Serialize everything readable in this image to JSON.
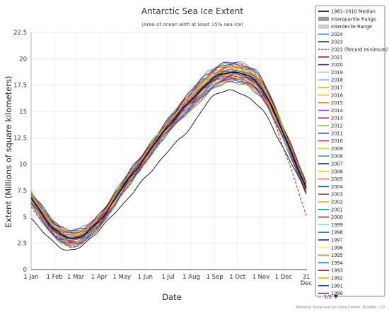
{
  "chart_data": {
    "type": "line",
    "title": "Antarctic Sea Ice Extent",
    "subtitle": "(Area of ocean with at least 15% sea ice)",
    "xlabel": "Date",
    "ylabel": "Extent (Millions of square kilometers)",
    "x_ticks": [
      "1 Jan",
      "1 Feb",
      "1 Mar",
      "1 Apr",
      "1 May",
      "1 Jun",
      "1 Jul",
      "1 Aug",
      "1 Sep",
      "1 Oct",
      "1 Nov",
      "1 Dec",
      "31 Dec"
    ],
    "x_tick_days": [
      1,
      32,
      60,
      91,
      121,
      152,
      182,
      213,
      244,
      274,
      305,
      335,
      365
    ],
    "y_ticks": [
      "0",
      "2.5",
      "5",
      "7.5",
      "10",
      "12.5",
      "15",
      "17.5",
      "20",
      "22.5"
    ],
    "ylim": [
      0,
      22.5
    ],
    "xlim": [
      1,
      366
    ],
    "grid": true,
    "legend_position": "right",
    "series": [
      {
        "name": "1981–2010 Median",
        "color": "#000000",
        "style": "solid",
        "x": [
          1,
          32,
          60,
          91,
          121,
          152,
          182,
          213,
          244,
          274,
          305,
          335,
          365
        ],
        "values": [
          6.8,
          3.8,
          3.0,
          4.6,
          7.7,
          10.7,
          13.6,
          16.1,
          18.2,
          18.7,
          17.3,
          12.9,
          7.7
        ]
      },
      {
        "name": "Interquartile Range",
        "color": "#999999",
        "style": "band",
        "lower": [
          6.5,
          3.5,
          2.8,
          4.3,
          7.4,
          10.4,
          13.3,
          15.8,
          17.9,
          18.4,
          17.0,
          12.6,
          7.4
        ],
        "upper": [
          7.1,
          4.1,
          3.2,
          4.9,
          8.0,
          11.0,
          13.9,
          16.4,
          18.5,
          19.0,
          17.6,
          13.2,
          8.0
        ]
      },
      {
        "name": "Interdecile Range",
        "color": "#cccccc",
        "style": "band",
        "lower": [
          6.1,
          3.2,
          2.6,
          4.0,
          7.1,
          10.1,
          13.0,
          15.5,
          17.6,
          18.1,
          16.7,
          12.2,
          7.0
        ],
        "upper": [
          7.5,
          4.4,
          3.5,
          5.2,
          8.3,
          11.3,
          14.2,
          16.7,
          18.8,
          19.3,
          17.9,
          13.5,
          8.4
        ]
      },
      {
        "name": "2024",
        "color": "#2f7ed8",
        "style": "solid"
      },
      {
        "name": "2023",
        "color": "#1f1f1f",
        "style": "solid",
        "x": [
          1,
          32,
          60,
          91,
          121,
          152,
          182,
          213,
          244,
          274,
          305,
          335,
          365
        ],
        "values": [
          4.9,
          2.5,
          1.9,
          3.8,
          6.1,
          8.7,
          11.2,
          13.6,
          16.6,
          16.8,
          15.3,
          11.5,
          7.3
        ]
      },
      {
        "name": "2022 (Record minimum)",
        "color": "#c0392b",
        "style": "dashed",
        "x": [
          1,
          32,
          60,
          91,
          121,
          152,
          182,
          213,
          244,
          274,
          305,
          335,
          365
        ],
        "values": [
          6.0,
          3.3,
          2.2,
          4.1,
          7.1,
          10.2,
          13.1,
          16.1,
          17.9,
          18.2,
          16.7,
          11.6,
          5.1
        ]
      },
      {
        "name": "2021",
        "color": "#8b1a1a",
        "style": "solid"
      },
      {
        "name": "2020",
        "color": "#6a1b9a",
        "style": "solid"
      },
      {
        "name": "2019",
        "color": "#a5d6a7",
        "style": "solid"
      },
      {
        "name": "2018",
        "color": "#4fc3f7",
        "style": "solid"
      },
      {
        "name": "2017",
        "color": "#e6a817",
        "style": "solid"
      },
      {
        "name": "2016",
        "color": "#f4c430",
        "style": "solid"
      },
      {
        "name": "2015",
        "color": "#e67e22",
        "style": "solid"
      },
      {
        "name": "2014",
        "color": "#a64dff",
        "style": "solid"
      },
      {
        "name": "2013",
        "color": "#d81b60",
        "style": "solid"
      },
      {
        "name": "2012",
        "color": "#8bc34a",
        "style": "solid"
      },
      {
        "name": "2011",
        "color": "#3949ab",
        "style": "solid"
      },
      {
        "name": "2010",
        "color": "#e91e63",
        "style": "solid"
      },
      {
        "name": "2009",
        "color": "#cddc39",
        "style": "solid"
      },
      {
        "name": "2008",
        "color": "#26a69a",
        "style": "solid"
      },
      {
        "name": "2007",
        "color": "#263238",
        "style": "solid"
      },
      {
        "name": "2006",
        "color": "#fbc02d",
        "style": "solid"
      },
      {
        "name": "2005",
        "color": "#ff7043",
        "style": "solid"
      },
      {
        "name": "2004",
        "color": "#1565c0",
        "style": "solid"
      },
      {
        "name": "2003",
        "color": "#795548",
        "style": "solid"
      },
      {
        "name": "2002",
        "color": "#ffa726",
        "style": "solid"
      },
      {
        "name": "2001",
        "color": "#009688",
        "style": "solid"
      },
      {
        "name": "2000",
        "color": "#b71c1c",
        "style": "solid"
      },
      {
        "name": "1999",
        "color": "#90caf9",
        "style": "solid"
      },
      {
        "name": "1998",
        "color": "#1e88e5",
        "style": "solid"
      },
      {
        "name": "1997",
        "color": "#4a148c",
        "style": "solid"
      },
      {
        "name": "1996",
        "color": "#fff176",
        "style": "solid"
      },
      {
        "name": "1995",
        "color": "#ef6c00",
        "style": "solid"
      },
      {
        "name": "1994",
        "color": "#1976d2",
        "style": "solid"
      },
      {
        "name": "1993",
        "color": "#c2185b",
        "style": "solid"
      },
      {
        "name": "1992",
        "color": "#ffb300",
        "style": "solid"
      },
      {
        "name": "1991",
        "color": "#0d47a1",
        "style": "solid"
      },
      {
        "name": "1990",
        "color": "#ad1457",
        "style": "solid"
      }
    ],
    "pager": "1/2",
    "credit": "National Snow and Ice Data Center, Boulder, CO"
  }
}
